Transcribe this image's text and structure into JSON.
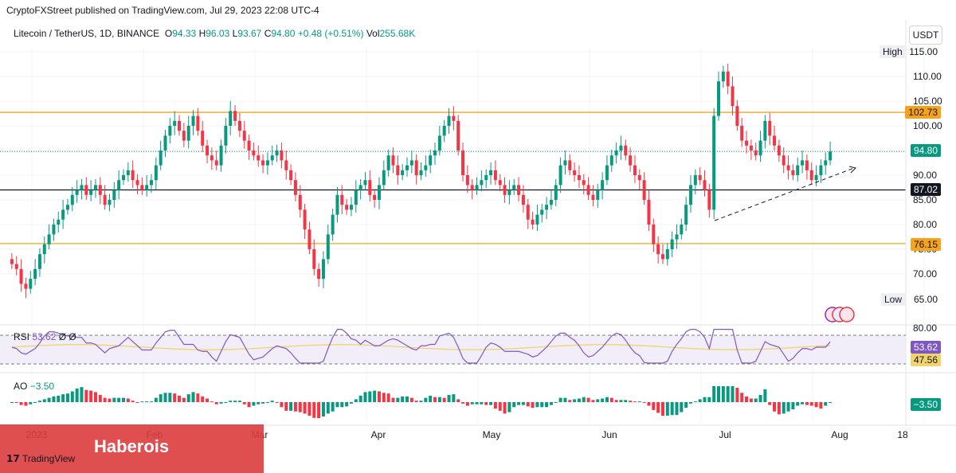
{
  "header": {
    "caption": "CryptoFXStreet published on TradingView.com, Jul 29, 2023 22:08 UTC-4"
  },
  "legend": {
    "symbol": "Litecoin / TetherUS, 1D, BINANCE",
    "o_label": "O",
    "o": "94.33",
    "h_label": "H",
    "h": "96.03",
    "l_label": "L",
    "l": "93.67",
    "c_label": "C",
    "c": "94.80",
    "change": "+0.48 (+0.51%)",
    "vol_label": "Vol",
    "vol": "255.68K"
  },
  "currency": "USDT",
  "rsi_legend": {
    "name": "RSI",
    "value": "53.62",
    "extra": "Ø Ø"
  },
  "ao_legend": {
    "name": "AO",
    "value": "−3.50"
  },
  "price_tags": {
    "last": "94.80",
    "res": "102.73",
    "mid": "87.02",
    "sup": "76.15",
    "high_label": "High",
    "high": "115.00",
    "low_label": "Low",
    "low": "65.00",
    "rsi": "53.62",
    "rsi_ma": "47.56",
    "ao": "−3.50"
  },
  "colors": {
    "up": "#089981",
    "down": "#f23645",
    "orange": "#f7a21b",
    "rsi": "#7e57c2",
    "rsi_ma": "#f0d36a"
  },
  "watermark": {
    "text": "Haberois",
    "logo": "TradingView"
  },
  "chart_data": {
    "type": "candlestick",
    "symbol": "LTCUSDT",
    "timeframe": "1D",
    "y_ticks": [
      70,
      75,
      80,
      85,
      90,
      95,
      100,
      105,
      110,
      115
    ],
    "x_labels": [
      "2023",
      "Feb",
      "Mar",
      "Apr",
      "May",
      "Jun",
      "Jul",
      "Aug",
      "18"
    ],
    "ylim": [
      65,
      115
    ],
    "levels": {
      "resistance": 102.73,
      "mid": 87.02,
      "support": 76.15,
      "last": 94.8
    },
    "closes": [
      72,
      71,
      68,
      67,
      69,
      71,
      74,
      76,
      78,
      80,
      81,
      83,
      84,
      86,
      87,
      88,
      86,
      87,
      88,
      86,
      84,
      85,
      87,
      89,
      90,
      91,
      89,
      88,
      87,
      88,
      89,
      92,
      95,
      98,
      100,
      101,
      99,
      97,
      100,
      102,
      99,
      96,
      94,
      93,
      92,
      96,
      100,
      103,
      101,
      99,
      97,
      95,
      94,
      93,
      92,
      93,
      94,
      95,
      93,
      91,
      89,
      86,
      83,
      79,
      75,
      71,
      69,
      73,
      78,
      82,
      86,
      84,
      83,
      84,
      87,
      88,
      89,
      86,
      85,
      88,
      91,
      94,
      92,
      90,
      91,
      92,
      93,
      90,
      91,
      92,
      94,
      95,
      98,
      100,
      102,
      101,
      95,
      90,
      88,
      87,
      88,
      89,
      90,
      91,
      89,
      88,
      86,
      87,
      88,
      86,
      84,
      81,
      80,
      82,
      83,
      84,
      85,
      88,
      92,
      93,
      91,
      90,
      89,
      88,
      86,
      85,
      87,
      89,
      92,
      94,
      95,
      96,
      94,
      92,
      90,
      89,
      85,
      80,
      76,
      74,
      73,
      75,
      77,
      78,
      80,
      84,
      88,
      90,
      89,
      87,
      83,
      102,
      109,
      111,
      108,
      104,
      100,
      97,
      96,
      95,
      94,
      97,
      101,
      98,
      96,
      94,
      92,
      91,
      90,
      92,
      93,
      91,
      89,
      90,
      92,
      93,
      94.8
    ],
    "rsi": {
      "value": 53.62,
      "ma": 47.56,
      "ylim": [
        20,
        80
      ],
      "ticks": [
        80
      ]
    },
    "ao": {
      "value": -3.5
    }
  }
}
